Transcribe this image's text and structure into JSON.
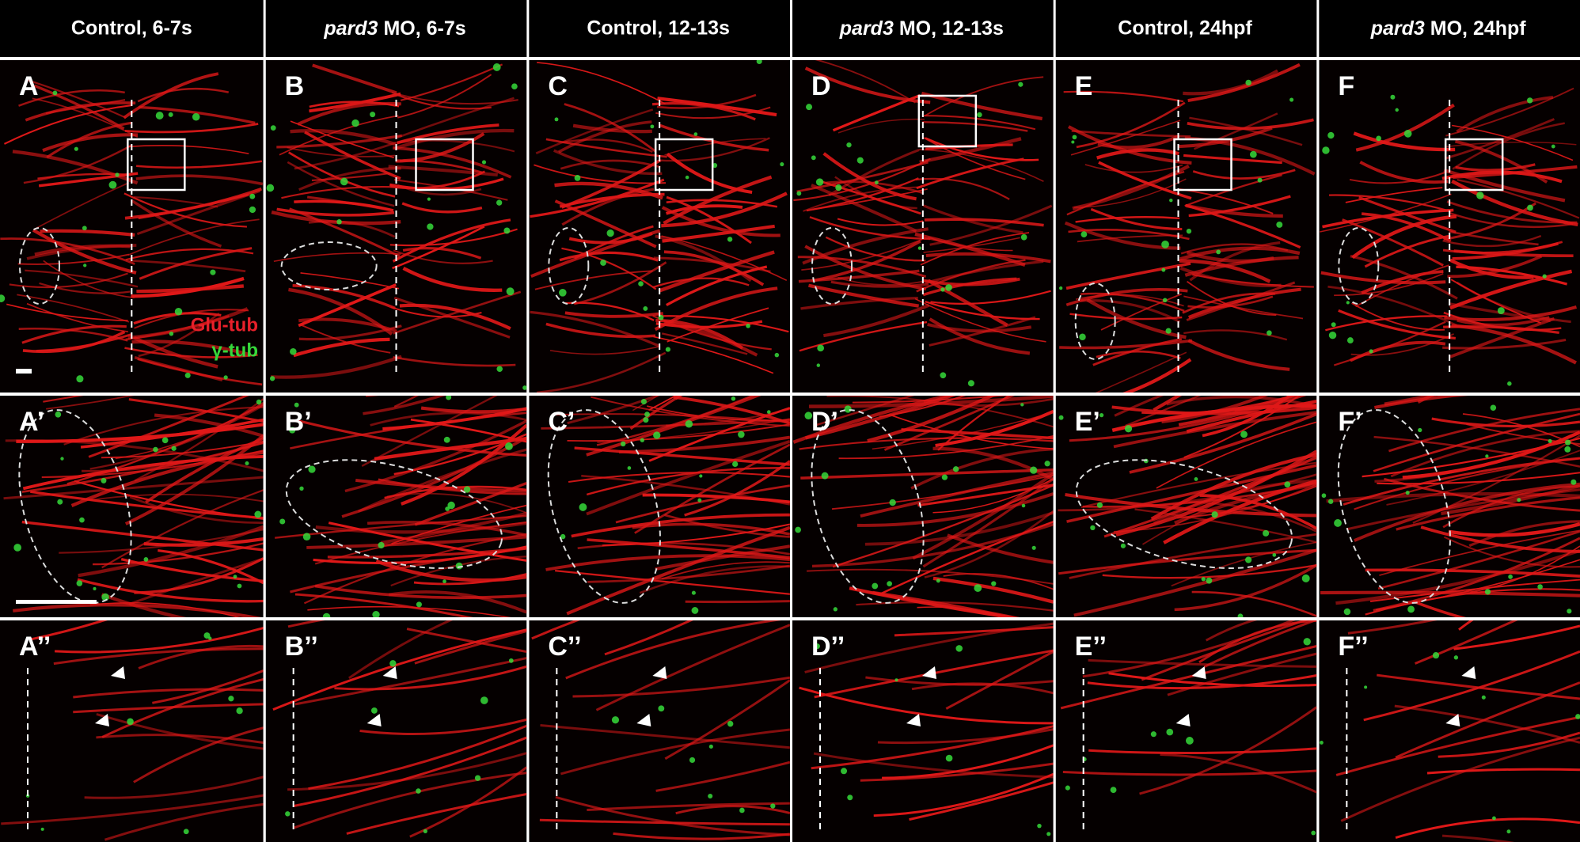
{
  "columns": [
    {
      "title": "Control, 6-7s"
    },
    {
      "gene": "pard3",
      "title": "MO, 6-7s"
    },
    {
      "title": "Control, 12-13s"
    },
    {
      "gene": "pard3",
      "title": "MO, 12-13s"
    },
    {
      "title": "Control, 24hpf"
    },
    {
      "gene": "pard3",
      "title": "MO, 24hpf"
    }
  ],
  "panels": [
    [
      "A",
      "B",
      "C",
      "D",
      "E",
      "F"
    ],
    [
      "A’",
      "B’",
      "C’",
      "D’",
      "E’",
      "F’"
    ],
    [
      "A’’",
      "B’’",
      "C’’",
      "D’’",
      "E’’",
      "F’’"
    ]
  ],
  "legend": [
    {
      "text": "Glu-tub",
      "color": "#e8202a"
    },
    {
      "text": "γ-tub",
      "color": "#36d93a"
    }
  ]
}
